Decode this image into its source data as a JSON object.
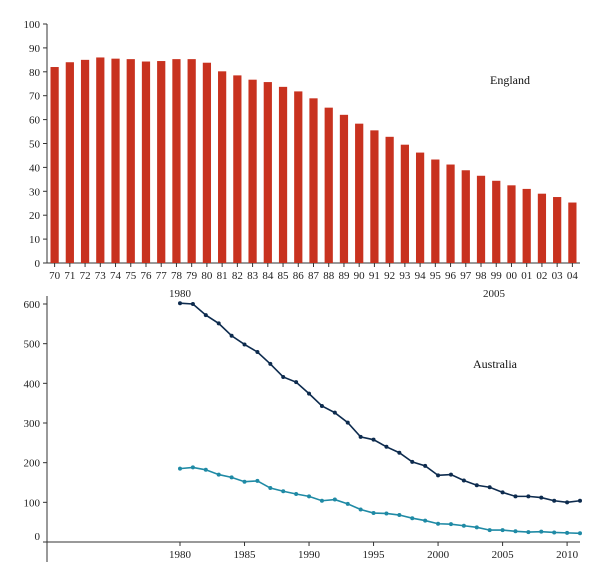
{
  "chart_data": [
    {
      "type": "bar",
      "annotation": "England",
      "ylim": [
        0,
        100
      ],
      "yticks": [
        0,
        10,
        20,
        30,
        40,
        50,
        60,
        70,
        80,
        90,
        100
      ],
      "bar_color": "#c8321f",
      "categories": [
        "70",
        "71",
        "72",
        "73",
        "74",
        "75",
        "76",
        "77",
        "78",
        "79",
        "80",
        "81",
        "82",
        "83",
        "84",
        "85",
        "86",
        "87",
        "88",
        "89",
        "90",
        "91",
        "92",
        "93",
        "94",
        "95",
        "96",
        "97",
        "98",
        "99",
        "00",
        "01",
        "02",
        "03",
        "04"
      ],
      "values": [
        82,
        84,
        85,
        86,
        85.5,
        85.3,
        84.3,
        84.5,
        85.3,
        85.3,
        83.8,
        80.2,
        78.5,
        76.7,
        75.7,
        73.7,
        71.8,
        68.9,
        65,
        62,
        58.3,
        55.5,
        52.8,
        49.5,
        46.2,
        43.3,
        41.2,
        38.8,
        36.5,
        34.4,
        32.5,
        31,
        29,
        27.6,
        25.3
      ],
      "legend": "none",
      "grid": false
    },
    {
      "type": "line",
      "annotation": "Australia",
      "ylim": [
        0,
        600
      ],
      "yticks": [
        0,
        100,
        200,
        300,
        400,
        500,
        600
      ],
      "xticks": [
        1980,
        1985,
        1990,
        1995,
        2000,
        2005,
        2010
      ],
      "xlim": [
        1980,
        2011
      ],
      "top_labels": [
        "1980",
        "2005"
      ],
      "x": [
        1980,
        1981,
        1982,
        1983,
        1984,
        1985,
        1986,
        1987,
        1988,
        1989,
        1990,
        1991,
        1992,
        1993,
        1994,
        1995,
        1996,
        1997,
        1998,
        1999,
        2000,
        2001,
        2002,
        2003,
        2004,
        2005,
        2006,
        2007,
        2008,
        2009,
        2010,
        2011
      ],
      "series": [
        {
          "color": "#0d2b4e",
          "values": [
            602,
            600,
            572,
            551,
            520,
            498,
            479,
            449,
            416,
            403,
            374,
            343,
            326,
            301,
            265,
            258,
            240,
            225,
            202,
            192,
            168,
            170,
            155,
            143,
            138,
            125,
            115,
            115,
            112,
            104,
            100,
            104
          ]
        },
        {
          "color": "#1f8aa5",
          "values": [
            185,
            188,
            182,
            170,
            163,
            152,
            154,
            136,
            128,
            121,
            115,
            104,
            107,
            96,
            82,
            73,
            72,
            68,
            60,
            54,
            46,
            45,
            41,
            37,
            30,
            30,
            27,
            25,
            26,
            24,
            23,
            22
          ]
        }
      ],
      "legend": "none",
      "grid": false
    }
  ]
}
